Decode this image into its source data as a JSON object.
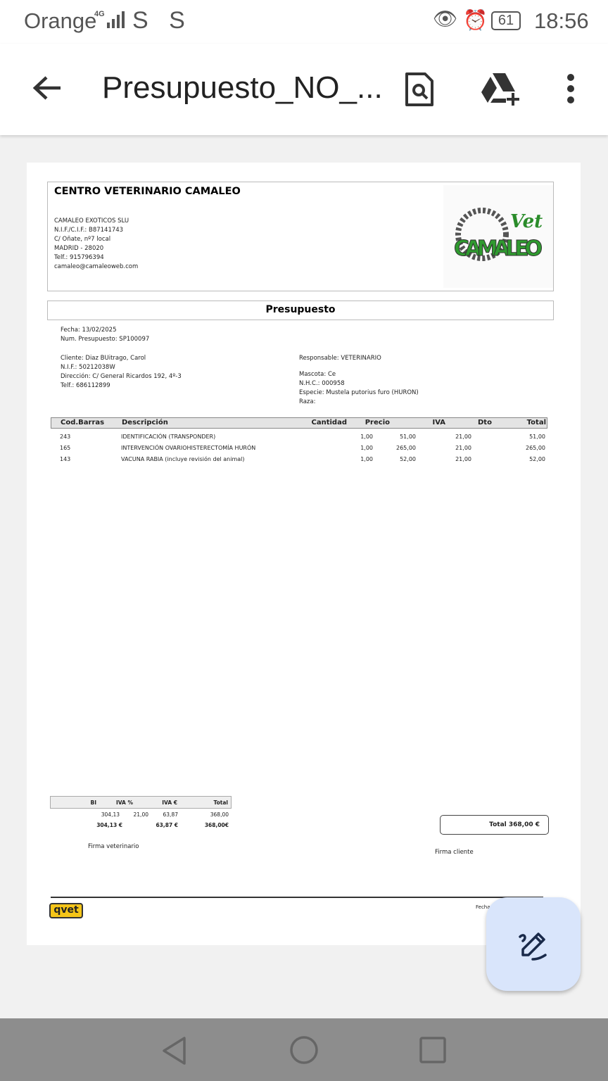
{
  "status_bar": {
    "carrier": "Orange",
    "network": "4G",
    "sim_icons": "S S",
    "battery": "61",
    "time": "18:56"
  },
  "app_bar": {
    "title": "Presupuesto_NO_..."
  },
  "document": {
    "clinic_name": "CENTRO VETERINARIO CAMALEO",
    "clinic_lines": [
      "CAMALEO EXOTICOS SLU",
      "N.I.F./C.I.F.: B87141743",
      "C/ Oñate, nº7 local",
      "MADRID - 28020",
      "Telf.: 915796394",
      "camaleo@camaleoweb.com"
    ],
    "logo_text": {
      "top": "Vet",
      "main": "CAMALEO"
    },
    "section_title": "Presupuesto",
    "fecha": "Fecha: 13/02/2025",
    "num": "Num. Presupuesto: SP100097",
    "client_lines": [
      "Cliente: Diaz BUitrago, Carol",
      "N.I.F.: 50212038W",
      "Dirección: C/ General Ricardos 192, 4º-3",
      "Telf.: 686112899"
    ],
    "responsable": "Responsable: VETERINARIO",
    "pet_lines": [
      "Mascota: Ce",
      "N.H.C.: 000958",
      "Especie: Mustela putorius furo (HURON)",
      "Raza:"
    ],
    "table": {
      "headers": [
        "Cod.Barras",
        "Descripción",
        "Cantidad",
        "Precio",
        "IVA",
        "Dto",
        "Total"
      ],
      "rows": [
        [
          "243",
          "IDENTIFICACIÓN (TRANSPONDER)",
          "1,00",
          "51,00",
          "21,00",
          "",
          "51,00"
        ],
        [
          "165",
          "INTERVENCIÓN OVARIOHISTERECTOMÍA HURÓN",
          "1,00",
          "265,00",
          "21,00",
          "",
          "265,00"
        ],
        [
          "143",
          "VACUNA RABIA  (incluye revisión del animal)",
          "1,00",
          "52,00",
          "21,00",
          "",
          "52,00"
        ]
      ]
    },
    "summary": {
      "headers": [
        "BI",
        "IVA %",
        "IVA €",
        "Total"
      ],
      "row": [
        "304,13",
        "21,00",
        "63,87",
        "368,00"
      ],
      "totals": [
        "304,13 €",
        "",
        "63,87 €",
        "368,00€"
      ]
    },
    "total_box": "Total  368,00 €",
    "firma_veterinario": "Firma veterinario",
    "firma_cliente": "Firma cliente",
    "footer_logo": "qvet",
    "footer_fecha": "Fecha"
  }
}
